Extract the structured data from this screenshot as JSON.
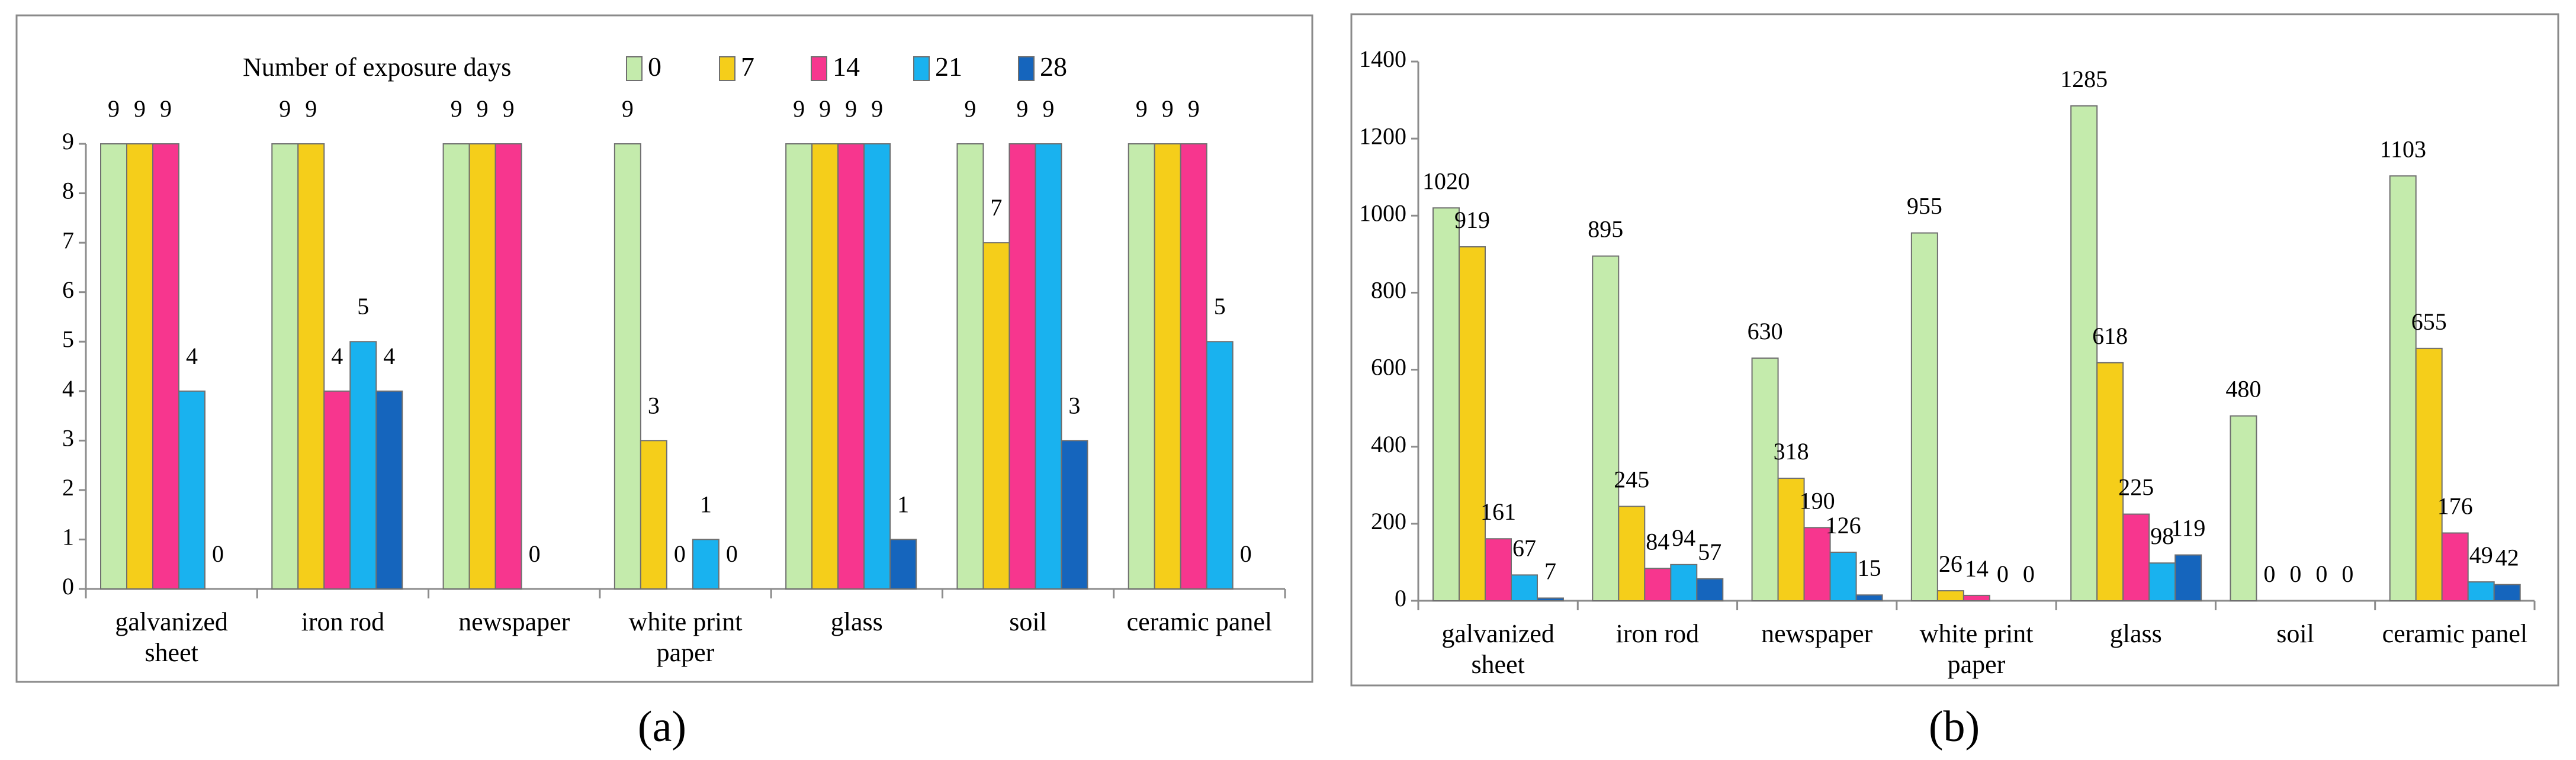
{
  "colors": {
    "0": "#c4ebac",
    "7": "#f5ce1a",
    "14": "#f7368e",
    "21": "#19b2ef",
    "28": "#1565bd"
  },
  "legend": {
    "title": "Number of exposure days",
    "items": [
      "0",
      "7",
      "14",
      "21",
      "28"
    ]
  },
  "chart_data": [
    {
      "type": "bar",
      "panel_label": "(a)",
      "title": "",
      "xlabel": "",
      "ylabel": "",
      "ylim": [
        0,
        9
      ],
      "yticks": [
        "0",
        "1",
        "2",
        "3",
        "4",
        "5",
        "6",
        "7",
        "8",
        "9"
      ],
      "categories": [
        [
          "galvanized",
          "sheet"
        ],
        [
          "iron rod"
        ],
        [
          "newspaper"
        ],
        [
          "white print",
          "paper"
        ],
        [
          "glass"
        ],
        [
          "soil"
        ],
        [
          "ceramic panel"
        ]
      ],
      "series": [
        {
          "name": "0",
          "values": [
            9,
            9,
            9,
            9,
            9,
            9,
            9
          ],
          "labels": [
            "9",
            "9",
            "9",
            "9",
            "9",
            "9",
            "9"
          ]
        },
        {
          "name": "7",
          "values": [
            9,
            9,
            9,
            3,
            9,
            7,
            9
          ],
          "labels": [
            "9",
            "9",
            "9",
            "3",
            "9",
            "7",
            "9"
          ]
        },
        {
          "name": "14",
          "values": [
            9,
            4,
            9,
            0,
            9,
            9,
            9
          ],
          "labels": [
            "9",
            "4",
            "9",
            "0",
            "9",
            "9",
            "9"
          ]
        },
        {
          "name": "21",
          "values": [
            4,
            5,
            0,
            1,
            9,
            9,
            5
          ],
          "labels": [
            "4",
            "5",
            "0",
            "1",
            "9",
            "9",
            "5"
          ]
        },
        {
          "name": "28",
          "values": [
            0,
            4,
            null,
            0,
            1,
            3,
            0
          ],
          "labels": [
            "0",
            "4",
            null,
            "0",
            "1",
            "3",
            "0"
          ]
        }
      ]
    },
    {
      "type": "bar",
      "panel_label": "(b)",
      "title": "",
      "xlabel": "",
      "ylabel": "",
      "ylim": [
        0,
        1400
      ],
      "yticks": [
        "0",
        "200",
        "400",
        "600",
        "800",
        "1000",
        "1200",
        "1400"
      ],
      "categories": [
        [
          "galvanized",
          "sheet"
        ],
        [
          "iron rod"
        ],
        [
          "newspaper"
        ],
        [
          "white print",
          "paper"
        ],
        [
          "glass"
        ],
        [
          "soil"
        ],
        [
          "ceramic panel"
        ]
      ],
      "series": [
        {
          "name": "0",
          "values": [
            1020,
            895,
            630,
            955,
            1285,
            480,
            1103
          ],
          "labels": [
            "1020",
            "895",
            "630",
            "955",
            "1285",
            "480",
            "1103"
          ]
        },
        {
          "name": "7",
          "values": [
            919,
            245,
            318,
            26,
            618,
            0,
            655
          ],
          "labels": [
            "919",
            "245",
            "318",
            "26",
            "618",
            "0",
            "655"
          ]
        },
        {
          "name": "14",
          "values": [
            161,
            84,
            190,
            14,
            225,
            0,
            176
          ],
          "labels": [
            "161",
            "84",
            "190",
            "14",
            "225",
            "0",
            "176"
          ]
        },
        {
          "name": "21",
          "values": [
            67,
            94,
            126,
            0,
            98,
            0,
            49
          ],
          "labels": [
            "67",
            "94",
            "126",
            "0",
            "98",
            "0",
            "49"
          ]
        },
        {
          "name": "28",
          "values": [
            7,
            57,
            15,
            0,
            119,
            0,
            42
          ],
          "labels": [
            "7",
            "57",
            "15",
            "0",
            "119",
            "0",
            "42"
          ]
        }
      ]
    }
  ]
}
